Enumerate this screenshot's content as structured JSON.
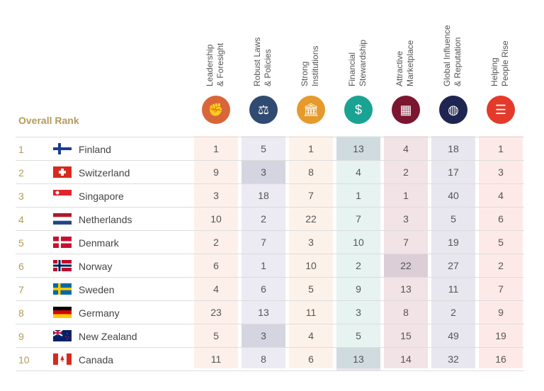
{
  "overall_rank_label": "Overall Rank",
  "columns": [
    {
      "line1": "Leadership",
      "line2": "& Foresight",
      "icon": "telescope-icon",
      "color": "#d9663a",
      "bg": "#fdf0ea"
    },
    {
      "line1": "Robust Laws",
      "line2": "& Policies",
      "icon": "scales-icon",
      "color": "#2f4b72",
      "bg": "#eceaf2"
    },
    {
      "line1": "Strong",
      "line2": "Institutions",
      "icon": "building-icon",
      "color": "#e59a2b",
      "bg": "#fdf2ea"
    },
    {
      "line1": "Financial",
      "line2": "Stewardship",
      "icon": "money-search-icon",
      "color": "#1aa392",
      "bg": "#e6f3f0"
    },
    {
      "line1": "Attractive",
      "line2": "Marketplace",
      "icon": "store-icon",
      "color": "#7b1530",
      "bg": "#f2e3e6"
    },
    {
      "line1": "Global Influence",
      "line2": "& Reputation",
      "icon": "globe-icon",
      "color": "#1e2550",
      "bg": "#e8e6ee"
    },
    {
      "line1": "Helping",
      "line2": "People Rise",
      "icon": "ladder-icon",
      "color": "#e43a2a",
      "bg": "#fdeae8"
    }
  ],
  "rows": [
    {
      "rank": "1",
      "country": "Finland",
      "flag": "finland",
      "scores": [
        "1",
        "5",
        "1",
        "13",
        "4",
        "18",
        "1"
      ],
      "highlight": [
        3
      ]
    },
    {
      "rank": "2",
      "country": "Switzerland",
      "flag": "switzerland",
      "scores": [
        "9",
        "3",
        "8",
        "4",
        "2",
        "17",
        "3"
      ],
      "highlight": [
        1
      ]
    },
    {
      "rank": "3",
      "country": "Singapore",
      "flag": "singapore",
      "scores": [
        "3",
        "18",
        "7",
        "1",
        "1",
        "40",
        "4"
      ],
      "highlight": []
    },
    {
      "rank": "4",
      "country": "Netherlands",
      "flag": "netherlands",
      "scores": [
        "10",
        "2",
        "22",
        "7",
        "3",
        "5",
        "6"
      ],
      "highlight": []
    },
    {
      "rank": "5",
      "country": "Denmark",
      "flag": "denmark",
      "scores": [
        "2",
        "7",
        "3",
        "10",
        "7",
        "19",
        "5"
      ],
      "highlight": []
    },
    {
      "rank": "6",
      "country": "Norway",
      "flag": "norway",
      "scores": [
        "6",
        "1",
        "10",
        "2",
        "22",
        "27",
        "2"
      ],
      "highlight": [
        4
      ]
    },
    {
      "rank": "7",
      "country": "Sweden",
      "flag": "sweden",
      "scores": [
        "4",
        "6",
        "5",
        "9",
        "13",
        "11",
        "7"
      ],
      "highlight": []
    },
    {
      "rank": "8",
      "country": "Germany",
      "flag": "germany",
      "scores": [
        "23",
        "13",
        "11",
        "3",
        "8",
        "2",
        "9"
      ],
      "highlight": []
    },
    {
      "rank": "9",
      "country": "New Zealand",
      "flag": "new-zealand",
      "scores": [
        "5",
        "3",
        "4",
        "5",
        "15",
        "49",
        "19"
      ],
      "highlight": [
        1
      ]
    },
    {
      "rank": "10",
      "country": "Canada",
      "flag": "canada",
      "scores": [
        "11",
        "8",
        "6",
        "13",
        "14",
        "32",
        "16"
      ],
      "highlight": [
        3
      ]
    }
  ]
}
